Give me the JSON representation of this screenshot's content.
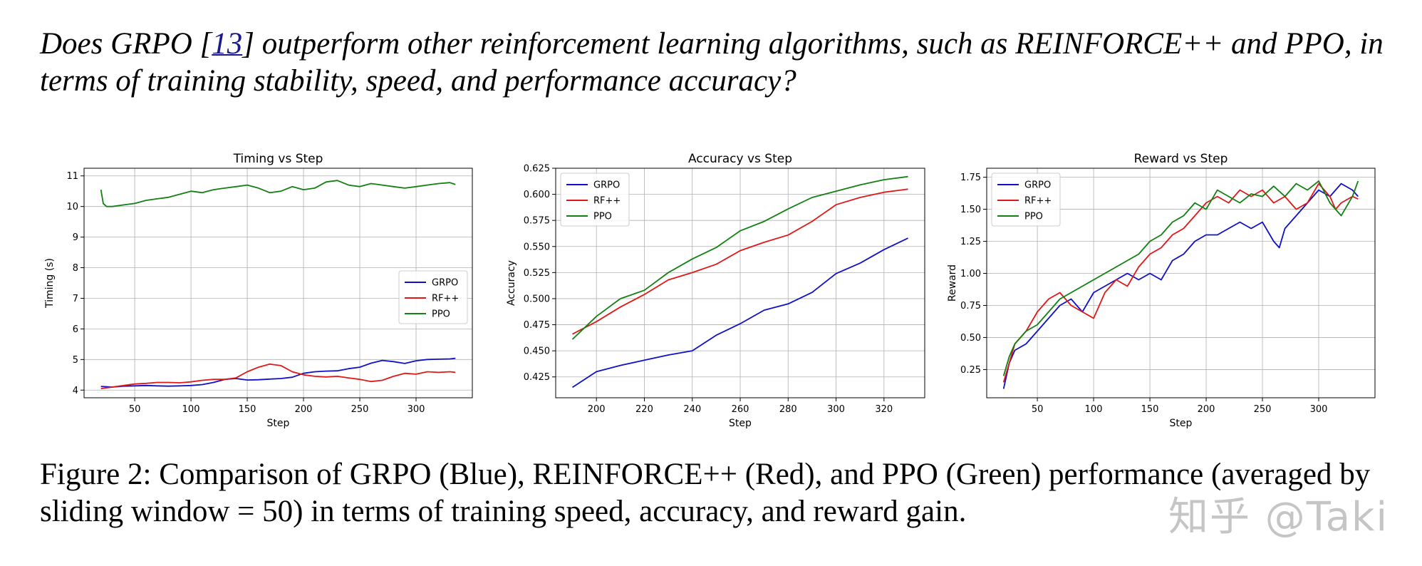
{
  "question": {
    "before": "Does GRPO ",
    "ref_open": "[",
    "ref": "13",
    "ref_close": "]",
    "after": " outperform other reinforcement learning algorithms, such as REINFORCE++ and PPO, in terms of training stability, speed, and performance accuracy?"
  },
  "caption": "Figure 2: Comparison of GRPO (Blue), REINFORCE++ (Red), and PPO (Green) performance (averaged by sliding window = 50) in terms of training speed, accuracy, and reward gain.",
  "watermark": "知乎 @Taki",
  "colors": {
    "GRPO": "#1010c8",
    "RF++": "#e01818",
    "PPO": "#128012"
  },
  "chart_data": [
    {
      "type": "line",
      "title": "Timing vs Step",
      "xlabel": "Step",
      "ylabel": "Timing (s)",
      "xlim": [
        5,
        350
      ],
      "ylim": [
        3.75,
        11.25
      ],
      "xticks": [
        50,
        100,
        150,
        200,
        250,
        300
      ],
      "yticks": [
        4,
        5,
        6,
        7,
        8,
        9,
        10,
        11
      ],
      "grid": true,
      "legend_position": "center-right",
      "series": [
        {
          "name": "GRPO",
          "x": [
            20,
            30,
            40,
            50,
            60,
            70,
            80,
            90,
            100,
            110,
            120,
            130,
            140,
            150,
            160,
            170,
            180,
            190,
            200,
            210,
            220,
            230,
            240,
            250,
            260,
            270,
            280,
            290,
            300,
            310,
            320,
            330,
            335
          ],
          "y": [
            4.12,
            4.1,
            4.13,
            4.14,
            4.15,
            4.14,
            4.13,
            4.14,
            4.15,
            4.18,
            4.25,
            4.35,
            4.38,
            4.33,
            4.34,
            4.36,
            4.38,
            4.42,
            4.55,
            4.6,
            4.62,
            4.63,
            4.7,
            4.75,
            4.88,
            4.97,
            4.93,
            4.87,
            4.96,
            5.0,
            5.01,
            5.02,
            5.04
          ]
        },
        {
          "name": "RF++",
          "x": [
            20,
            30,
            40,
            50,
            60,
            70,
            80,
            90,
            100,
            110,
            120,
            130,
            140,
            150,
            160,
            170,
            180,
            190,
            200,
            210,
            220,
            230,
            240,
            250,
            260,
            270,
            280,
            290,
            300,
            310,
            320,
            330,
            335
          ],
          "y": [
            4.05,
            4.1,
            4.15,
            4.2,
            4.22,
            4.25,
            4.25,
            4.24,
            4.27,
            4.32,
            4.35,
            4.35,
            4.4,
            4.6,
            4.75,
            4.85,
            4.8,
            4.6,
            4.5,
            4.45,
            4.43,
            4.45,
            4.4,
            4.35,
            4.28,
            4.32,
            4.45,
            4.55,
            4.52,
            4.6,
            4.58,
            4.6,
            4.58
          ]
        },
        {
          "name": "PPO",
          "x": [
            20,
            22,
            25,
            30,
            40,
            50,
            60,
            70,
            80,
            90,
            100,
            110,
            120,
            130,
            140,
            150,
            160,
            170,
            180,
            190,
            200,
            210,
            220,
            230,
            240,
            250,
            260,
            270,
            280,
            290,
            300,
            310,
            320,
            330,
            335
          ],
          "y": [
            10.55,
            10.1,
            10.0,
            10.0,
            10.05,
            10.1,
            10.2,
            10.25,
            10.3,
            10.4,
            10.5,
            10.45,
            10.55,
            10.6,
            10.65,
            10.7,
            10.6,
            10.45,
            10.5,
            10.65,
            10.55,
            10.6,
            10.8,
            10.85,
            10.7,
            10.65,
            10.75,
            10.7,
            10.65,
            10.6,
            10.65,
            10.7,
            10.75,
            10.78,
            10.72
          ]
        }
      ]
    },
    {
      "type": "line",
      "title": "Accuracy vs Step",
      "xlabel": "Step",
      "ylabel": "Accuracy",
      "xlim": [
        183,
        337
      ],
      "ylim": [
        0.405,
        0.625
      ],
      "xticks": [
        200,
        220,
        240,
        260,
        280,
        300,
        320
      ],
      "yticks": [
        0.425,
        0.45,
        0.475,
        0.5,
        0.525,
        0.55,
        0.575,
        0.6,
        0.625
      ],
      "ytick_labels": [
        "0.425",
        "0.450",
        "0.475",
        "0.500",
        "0.525",
        "0.550",
        "0.575",
        "0.600",
        "0.625"
      ],
      "grid": true,
      "legend_position": "upper-left",
      "series": [
        {
          "name": "GRPO",
          "x": [
            190,
            200,
            210,
            220,
            230,
            240,
            250,
            260,
            270,
            280,
            290,
            300,
            310,
            320,
            330
          ],
          "y": [
            0.415,
            0.43,
            0.436,
            0.441,
            0.446,
            0.45,
            0.465,
            0.476,
            0.489,
            0.495,
            0.506,
            0.524,
            0.534,
            0.547,
            0.558
          ]
        },
        {
          "name": "RF++",
          "x": [
            190,
            200,
            210,
            220,
            230,
            240,
            250,
            260,
            270,
            280,
            290,
            300,
            310,
            320,
            330
          ],
          "y": [
            0.466,
            0.478,
            0.492,
            0.504,
            0.518,
            0.525,
            0.533,
            0.546,
            0.554,
            0.561,
            0.574,
            0.59,
            0.597,
            0.602,
            0.605
          ]
        },
        {
          "name": "PPO",
          "x": [
            190,
            200,
            210,
            220,
            230,
            240,
            250,
            260,
            270,
            280,
            290,
            300,
            310,
            320,
            330
          ],
          "y": [
            0.461,
            0.483,
            0.5,
            0.508,
            0.525,
            0.538,
            0.549,
            0.565,
            0.574,
            0.586,
            0.597,
            0.603,
            0.609,
            0.614,
            0.617
          ]
        }
      ]
    },
    {
      "type": "line",
      "title": "Reward vs Step",
      "xlabel": "Step",
      "ylabel": "Reward",
      "xlim": [
        5,
        350
      ],
      "ylim": [
        0.03,
        1.82
      ],
      "xticks": [
        50,
        100,
        150,
        200,
        250,
        300
      ],
      "yticks": [
        0.25,
        0.5,
        0.75,
        1.0,
        1.25,
        1.5,
        1.75
      ],
      "ytick_labels": [
        "0.25",
        "0.50",
        "0.75",
        "1.00",
        "1.25",
        "1.50",
        "1.75"
      ],
      "grid": true,
      "legend_position": "upper-left",
      "series": [
        {
          "name": "GRPO",
          "x": [
            20,
            25,
            30,
            40,
            50,
            60,
            70,
            80,
            90,
            100,
            110,
            120,
            130,
            140,
            150,
            160,
            170,
            180,
            190,
            200,
            210,
            220,
            230,
            240,
            250,
            260,
            265,
            270,
            280,
            290,
            300,
            310,
            320,
            330,
            335
          ],
          "y": [
            0.1,
            0.3,
            0.4,
            0.45,
            0.55,
            0.65,
            0.75,
            0.8,
            0.7,
            0.85,
            0.9,
            0.95,
            1.0,
            0.95,
            1.0,
            0.95,
            1.1,
            1.15,
            1.25,
            1.3,
            1.3,
            1.35,
            1.4,
            1.35,
            1.4,
            1.25,
            1.2,
            1.35,
            1.45,
            1.55,
            1.65,
            1.6,
            1.7,
            1.65,
            1.6
          ]
        },
        {
          "name": "RF++",
          "x": [
            20,
            25,
            30,
            40,
            50,
            60,
            70,
            80,
            90,
            100,
            110,
            120,
            130,
            140,
            150,
            160,
            170,
            180,
            190,
            200,
            210,
            220,
            230,
            240,
            250,
            260,
            270,
            280,
            290,
            300,
            310,
            315,
            320,
            330,
            335
          ],
          "y": [
            0.15,
            0.3,
            0.45,
            0.55,
            0.7,
            0.8,
            0.85,
            0.75,
            0.7,
            0.65,
            0.85,
            0.95,
            0.9,
            1.05,
            1.15,
            1.2,
            1.3,
            1.35,
            1.45,
            1.55,
            1.6,
            1.55,
            1.65,
            1.6,
            1.65,
            1.55,
            1.6,
            1.5,
            1.55,
            1.7,
            1.6,
            1.5,
            1.55,
            1.6,
            1.58
          ]
        },
        {
          "name": "PPO",
          "x": [
            20,
            25,
            30,
            40,
            50,
            60,
            70,
            80,
            90,
            100,
            110,
            120,
            130,
            140,
            150,
            160,
            170,
            180,
            190,
            200,
            210,
            220,
            230,
            240,
            250,
            260,
            270,
            280,
            290,
            300,
            310,
            320,
            330,
            335
          ],
          "y": [
            0.2,
            0.35,
            0.45,
            0.55,
            0.6,
            0.7,
            0.8,
            0.85,
            0.9,
            0.95,
            1.0,
            1.05,
            1.1,
            1.15,
            1.25,
            1.3,
            1.4,
            1.45,
            1.55,
            1.5,
            1.65,
            1.6,
            1.55,
            1.62,
            1.6,
            1.68,
            1.6,
            1.7,
            1.65,
            1.72,
            1.55,
            1.45,
            1.6,
            1.72
          ]
        }
      ]
    }
  ]
}
